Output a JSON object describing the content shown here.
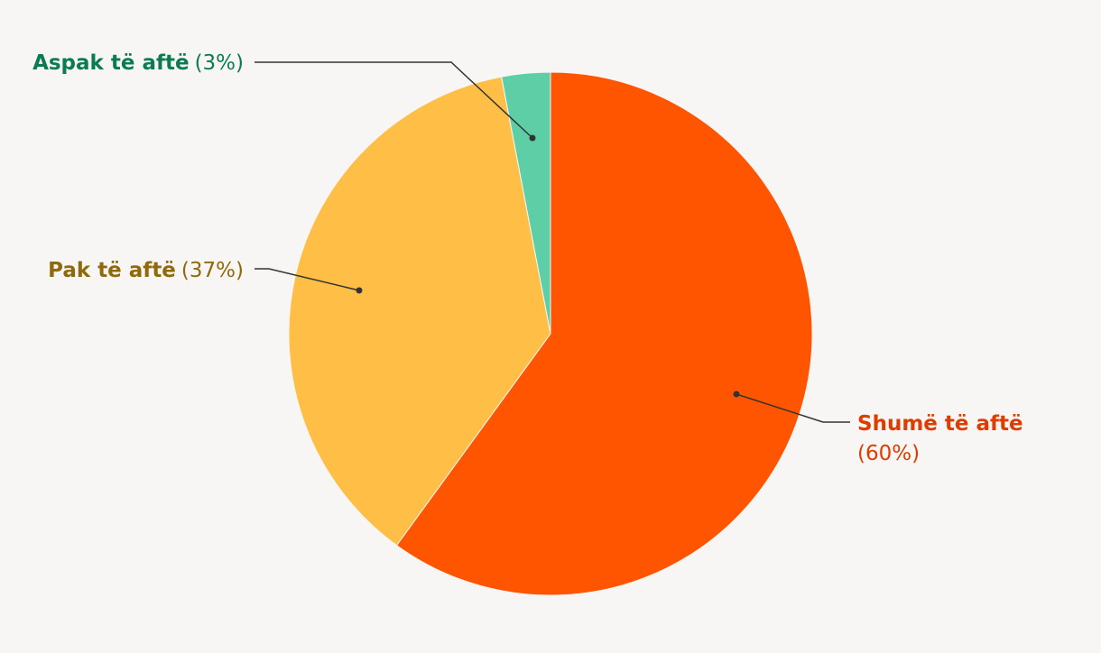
{
  "chart_data": {
    "type": "pie",
    "categories": [
      "Shumë të aftë",
      "Pak të aftë",
      "Aspak të aftë"
    ],
    "values": [
      60,
      37,
      3
    ],
    "value_labels": [
      "(60%)",
      "(37%)",
      "(3%)"
    ],
    "colors": [
      "#ff5500",
      "#ffbf47",
      "#5ecea6"
    ],
    "label_colors": [
      "#e03c00",
      "#8f6a0c",
      "#0b7c52"
    ]
  }
}
